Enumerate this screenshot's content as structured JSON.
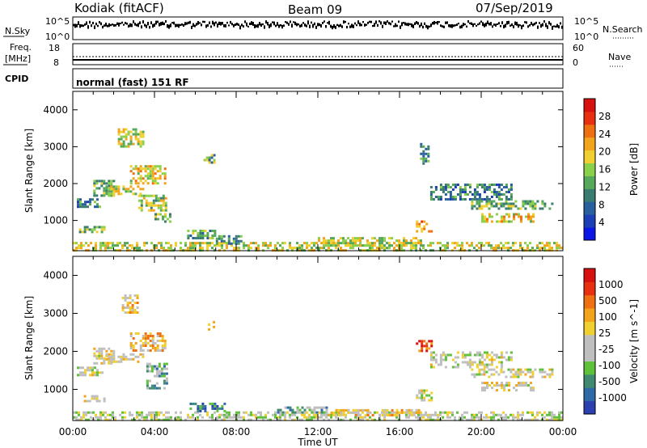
{
  "header": {
    "radar": "Kodiak (fitACF)",
    "beam": "Beam 09",
    "date": "07/Sep/2019"
  },
  "strips": {
    "nsky_label": "N.Sky",
    "nsearch_label": "N.Search",
    "nsky_ticks": [
      "10^5",
      "10^0"
    ],
    "nsearch_ticks": [
      "10^5",
      "10^0"
    ],
    "freq_label": "Freq.",
    "freq_unit": "[MHz]",
    "freq_ticks": [
      "18",
      "8"
    ],
    "nave_label": "Nave",
    "nave_ticks": [
      "60",
      "0"
    ],
    "cpid_label": "CPID",
    "cpid_text": "normal (fast) 151 RF"
  },
  "colors": {
    "power_scale": [
      "#0a16e6",
      "#1c3fb5",
      "#2a5f9e",
      "#3a7c6f",
      "#56a85a",
      "#8bd04a",
      "#f0d030",
      "#f2a51c",
      "#ee7010",
      "#e63010",
      "#d81010"
    ],
    "velocity_scale": [
      "#2a40b0",
      "#2f6aa8",
      "#3f8a70",
      "#5fc03a",
      "#bfbfbf",
      "#bfbfbf",
      "#f0d030",
      "#f2a51c",
      "#ee7010",
      "#e63010",
      "#d81010"
    ],
    "axis": "#000000"
  },
  "chart_data": [
    {
      "type": "heatmap",
      "panel": "power",
      "title": "",
      "xlabel": "",
      "ylabel": "Slant Range [km]",
      "xlim": [
        "00:00",
        "24:00"
      ],
      "ylim": [
        180,
        4500
      ],
      "x_ticks": [
        "00:00",
        "04:00",
        "08:00",
        "12:00",
        "16:00",
        "20:00",
        "00:00"
      ],
      "y_ticks": [
        1000,
        2000,
        3000,
        4000
      ],
      "colorbar": {
        "label": "Power [dB]",
        "range": [
          0,
          32
        ],
        "ticks": [
          4,
          8,
          12,
          16,
          20,
          24,
          28
        ]
      },
      "regions": [
        {
          "t": [
            0.0,
            24.0
          ],
          "r": [
            200,
            420
          ],
          "level": 0.55
        },
        {
          "t": [
            0.2,
            1.3
          ],
          "r": [
            1400,
            1600
          ],
          "level": 0.3
        },
        {
          "t": [
            0.3,
            1.6
          ],
          "r": [
            700,
            850
          ],
          "level": 0.45
        },
        {
          "t": [
            1.0,
            2.0
          ],
          "r": [
            1700,
            2100
          ],
          "level": 0.45
        },
        {
          "t": [
            1.6,
            3.5
          ],
          "r": [
            1750,
            1950
          ],
          "level": 0.55
        },
        {
          "t": [
            2.2,
            3.4
          ],
          "r": [
            3000,
            3500
          ],
          "level": 0.55
        },
        {
          "t": [
            2.8,
            4.5
          ],
          "r": [
            2000,
            2500
          ],
          "level": 0.6
        },
        {
          "t": [
            3.2,
            4.6
          ],
          "r": [
            1300,
            1700
          ],
          "level": 0.5
        },
        {
          "t": [
            4.0,
            4.8
          ],
          "r": [
            1000,
            1200
          ],
          "level": 0.5
        },
        {
          "t": [
            6.4,
            6.9
          ],
          "r": [
            2550,
            2800
          ],
          "level": 0.4
        },
        {
          "t": [
            5.6,
            7.0
          ],
          "r": [
            500,
            750
          ],
          "level": 0.4
        },
        {
          "t": [
            7.0,
            8.2
          ],
          "r": [
            400,
            600
          ],
          "level": 0.4
        },
        {
          "t": [
            12.0,
            17.0
          ],
          "r": [
            350,
            550
          ],
          "level": 0.55
        },
        {
          "t": [
            16.8,
            17.6
          ],
          "r": [
            700,
            1000
          ],
          "level": 0.7
        },
        {
          "t": [
            17.0,
            17.4
          ],
          "r": [
            2500,
            3100
          ],
          "level": 0.3
        },
        {
          "t": [
            17.5,
            21.5
          ],
          "r": [
            1600,
            2000
          ],
          "level": 0.3
        },
        {
          "t": [
            19.5,
            23.5
          ],
          "r": [
            1300,
            1550
          ],
          "level": 0.45
        },
        {
          "t": [
            20.0,
            22.5
          ],
          "r": [
            950,
            1200
          ],
          "level": 0.6
        }
      ]
    },
    {
      "type": "heatmap",
      "panel": "velocity",
      "title": "",
      "xlabel": "Time UT",
      "ylabel": "Slant Range [km]",
      "xlim": [
        "00:00",
        "24:00"
      ],
      "ylim": [
        180,
        4500
      ],
      "x_ticks": [
        "00:00",
        "04:00",
        "08:00",
        "12:00",
        "16:00",
        "20:00",
        "00:00"
      ],
      "y_ticks": [
        1000,
        2000,
        3000,
        4000
      ],
      "colorbar": {
        "label": "Velocity [m s^-1]",
        "ticks": [
          "1000",
          "500",
          "100",
          "25",
          "-25",
          "-100",
          "-500",
          "-1000"
        ]
      },
      "regions": [
        {
          "t": [
            0.0,
            24.0
          ],
          "r": [
            200,
            420
          ],
          "level": 0.45
        },
        {
          "t": [
            0.2,
            1.4
          ],
          "r": [
            1400,
            1600
          ],
          "level": 0.48
        },
        {
          "t": [
            0.3,
            1.6
          ],
          "r": [
            700,
            850
          ],
          "level": 0.5
        },
        {
          "t": [
            1.0,
            2.0
          ],
          "r": [
            1700,
            2100
          ],
          "level": 0.52
        },
        {
          "t": [
            1.6,
            3.5
          ],
          "r": [
            1750,
            1950
          ],
          "level": 0.55
        },
        {
          "t": [
            2.4,
            3.2
          ],
          "r": [
            3000,
            3500
          ],
          "level": 0.62
        },
        {
          "t": [
            2.8,
            4.5
          ],
          "r": [
            2000,
            2500
          ],
          "level": 0.62
        },
        {
          "t": [
            3.6,
            4.6
          ],
          "r": [
            1000,
            1700
          ],
          "level": 0.3
        },
        {
          "t": [
            6.5,
            6.9
          ],
          "r": [
            2550,
            2800
          ],
          "level": 0.55
        },
        {
          "t": [
            5.6,
            7.5
          ],
          "r": [
            450,
            650
          ],
          "level": 0.2
        },
        {
          "t": [
            10.0,
            12.5
          ],
          "r": [
            400,
            550
          ],
          "level": 0.32
        },
        {
          "t": [
            12.5,
            17.0
          ],
          "r": [
            300,
            480
          ],
          "level": 0.62
        },
        {
          "t": [
            16.8,
            17.6
          ],
          "r": [
            2000,
            2300
          ],
          "level": 0.8
        },
        {
          "t": [
            16.8,
            17.6
          ],
          "r": [
            700,
            1000
          ],
          "level": 0.48
        },
        {
          "t": [
            17.5,
            21.5
          ],
          "r": [
            1600,
            2000
          ],
          "level": 0.48
        },
        {
          "t": [
            19.5,
            23.5
          ],
          "r": [
            1300,
            1550
          ],
          "level": 0.5
        },
        {
          "t": [
            20.0,
            22.5
          ],
          "r": [
            950,
            1200
          ],
          "level": 0.52
        }
      ]
    }
  ]
}
